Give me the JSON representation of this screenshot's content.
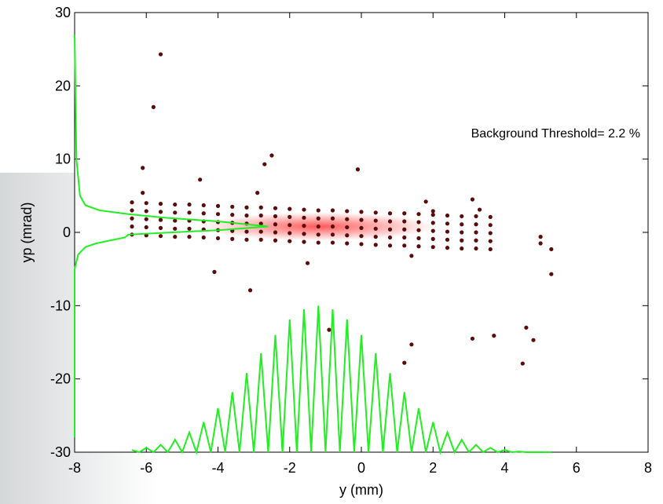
{
  "chart_data": {
    "type": "scatter",
    "annotation": "Background Threshold= 2.2 %",
    "xlabel": "y (mm)",
    "ylabel": "yp (mrad)",
    "xlim": [
      -8,
      8
    ],
    "xticks": [
      -8,
      -6,
      -4,
      -2,
      0,
      2,
      4,
      6,
      8
    ],
    "ylim": [
      -30,
      30
    ],
    "yticks": [
      -30,
      -20,
      -10,
      0,
      10,
      20,
      30
    ],
    "grid": false,
    "series": [
      {
        "type": "scatter",
        "color": "#5a0c0c",
        "x": [
          -6.4,
          -6.4,
          -6.4,
          -6.4,
          -6.4,
          -6.0,
          -6.0,
          -6.0,
          -6.0,
          -6.0,
          -5.6,
          -5.6,
          -5.6,
          -5.6,
          -5.6,
          -5.2,
          -5.2,
          -5.2,
          -5.2,
          -5.2,
          -4.8,
          -4.8,
          -4.8,
          -4.8,
          -4.8,
          -4.4,
          -4.4,
          -4.4,
          -4.4,
          -4.4,
          -4.0,
          -4.0,
          -4.0,
          -4.0,
          -4.0,
          -3.6,
          -3.6,
          -3.6,
          -3.6,
          -3.6,
          -3.2,
          -3.2,
          -3.2,
          -3.2,
          -3.2,
          -2.8,
          -2.8,
          -2.8,
          -2.8,
          -2.8,
          -2.4,
          -2.4,
          -2.4,
          -2.4,
          -2.4,
          -2.0,
          -2.0,
          -2.0,
          -2.0,
          -2.0,
          -1.6,
          -1.6,
          -1.6,
          -1.6,
          -1.6,
          -1.2,
          -1.2,
          -1.2,
          -1.2,
          -1.2,
          -0.8,
          -0.8,
          -0.8,
          -0.8,
          -0.8,
          -0.4,
          -0.4,
          -0.4,
          -0.4,
          -0.4,
          0.0,
          0.0,
          0.0,
          0.0,
          0.0,
          0.4,
          0.4,
          0.4,
          0.4,
          0.4,
          0.8,
          0.8,
          0.8,
          0.8,
          0.8,
          1.2,
          1.2,
          1.2,
          1.2,
          1.2,
          1.6,
          1.6,
          1.6,
          1.6,
          1.6,
          2.0,
          2.0,
          2.0,
          2.0,
          2.0,
          2.4,
          2.4,
          2.4,
          2.4,
          2.4,
          2.8,
          2.8,
          2.8,
          2.8,
          2.8,
          3.2,
          3.2,
          3.2,
          3.2,
          3.2,
          3.6,
          3.6,
          3.6,
          3.6,
          3.6,
          -5.6,
          -5.8,
          -6.1,
          -6.1,
          -4.5,
          -2.5,
          -2.7,
          -2.9,
          -3.1,
          -4.1,
          -0.1,
          -0.9,
          1.2,
          1.4,
          3.1,
          3.7,
          3.1,
          3.3,
          4.5,
          4.6,
          4.8,
          5.0,
          5.0,
          5.3,
          5.3,
          1.8,
          2.0,
          -1.5,
          1.4
        ],
        "values": [
          -0.3,
          0.8,
          1.9,
          3.0,
          4.1,
          -0.4,
          0.7,
          1.8,
          2.9,
          4.0,
          -0.5,
          0.6,
          1.7,
          2.8,
          3.9,
          -0.6,
          0.5,
          1.6,
          2.7,
          3.8,
          -0.6,
          0.5,
          1.6,
          2.7,
          3.8,
          -0.7,
          0.4,
          1.5,
          2.6,
          3.7,
          -0.8,
          0.3,
          1.4,
          2.5,
          3.6,
          -0.9,
          0.2,
          1.3,
          2.4,
          3.5,
          -1.0,
          0.1,
          1.2,
          2.3,
          3.4,
          -1.0,
          0.1,
          1.2,
          2.3,
          3.4,
          -1.1,
          0,
          1.1,
          2.2,
          3.3,
          -1.2,
          -0.1,
          1.0,
          2.1,
          3.2,
          -1.3,
          -0.2,
          0.9,
          2.0,
          3.1,
          -1.4,
          -0.3,
          0.8,
          1.9,
          3.0,
          -1.4,
          -0.3,
          0.8,
          1.9,
          3.0,
          -1.5,
          -0.4,
          0.7,
          1.8,
          2.9,
          -1.6,
          -0.5,
          0.6,
          1.7,
          2.8,
          -1.7,
          -0.6,
          0.5,
          1.6,
          2.7,
          -1.8,
          -0.7,
          0.4,
          1.5,
          2.6,
          -1.8,
          -0.7,
          0.4,
          1.5,
          2.6,
          -1.9,
          -0.8,
          0.3,
          1.4,
          2.5,
          -2.0,
          -0.9,
          0.2,
          1.3,
          2.4,
          -2.1,
          -1.0,
          0.1,
          1.2,
          2.3,
          -2.2,
          -1.1,
          0,
          1.1,
          2.2,
          -2.2,
          -1.1,
          0,
          1.1,
          2.2,
          -2.3,
          -1.2,
          -0.1,
          1.0,
          2.1,
          24.3,
          17.1,
          8.8,
          5.4,
          7.2,
          10.5,
          9.3,
          5.4,
          -7.9,
          -5.4,
          8.6,
          -13.3,
          -17.8,
          -15.3,
          -14.5,
          -14.1,
          4.5,
          3.1,
          -17.9,
          -13.0,
          -14.7,
          -0.6,
          -1.5,
          -2.3,
          -5.7,
          4.2,
          2.9,
          -4.2,
          -3.2
        ]
      },
      {
        "type": "line",
        "color": "#22ee22",
        "x": [
          -6.4,
          -6.2,
          -6.0,
          -5.8,
          -5.6,
          -5.4,
          -5.2,
          -5.0,
          -4.8,
          -4.6,
          -4.4,
          -4.2,
          -4.0,
          -3.8,
          -3.6,
          -3.4,
          -3.2,
          -3.0,
          -2.8,
          -2.6,
          -2.4,
          -2.2,
          -2.0,
          -1.8,
          -1.6,
          -1.4,
          -1.2,
          -1.0,
          -0.8,
          -0.6,
          -0.4,
          -0.2,
          0.0,
          0.2,
          0.4,
          0.6,
          0.8,
          1.0,
          1.2,
          1.4,
          1.6,
          1.8,
          2.0,
          2.2,
          2.4,
          2.6,
          2.8,
          3.0,
          3.2,
          3.4,
          3.6,
          3.8,
          4.0,
          4.2,
          4.4,
          4.6,
          4.8,
          5.0,
          5.2,
          5.3
        ],
        "values": [
          -29.7,
          -30,
          -29.4,
          -30,
          -29.0,
          -30,
          -28.3,
          -30,
          -27.3,
          -30,
          -25.9,
          -30,
          -24.0,
          -30,
          -21.8,
          -30,
          -19.2,
          -30,
          -16.5,
          -30,
          -14.0,
          -30,
          -11.9,
          -30,
          -10.5,
          -30,
          -10,
          -30,
          -10.5,
          -30,
          -11.9,
          -30,
          -14.0,
          -30,
          -16.5,
          -30,
          -19.2,
          -30,
          -21.8,
          -30,
          -24.0,
          -30,
          -25.9,
          -30,
          -27.3,
          -30,
          -28.3,
          -30,
          -29.0,
          -30,
          -29.4,
          -30,
          -29.7,
          -30,
          -29.9,
          -30,
          -30,
          -30,
          -30,
          -30
        ]
      },
      {
        "type": "line",
        "color": "#22ee22",
        "x": [
          -8,
          -8,
          -7.9,
          -7.7,
          -7.4,
          -6.6,
          -6.5,
          -4,
          -2.6,
          -4,
          -5.5,
          -6.5,
          -7.3,
          -7.7,
          -7.85,
          -7.95,
          -8
        ],
        "values": [
          -28,
          -5,
          -3,
          -2,
          -1.5,
          -0.7,
          -0.3,
          0.3,
          0.8,
          1.5,
          2,
          2.5,
          3,
          3.7,
          5,
          10,
          27
        ]
      }
    ]
  }
}
